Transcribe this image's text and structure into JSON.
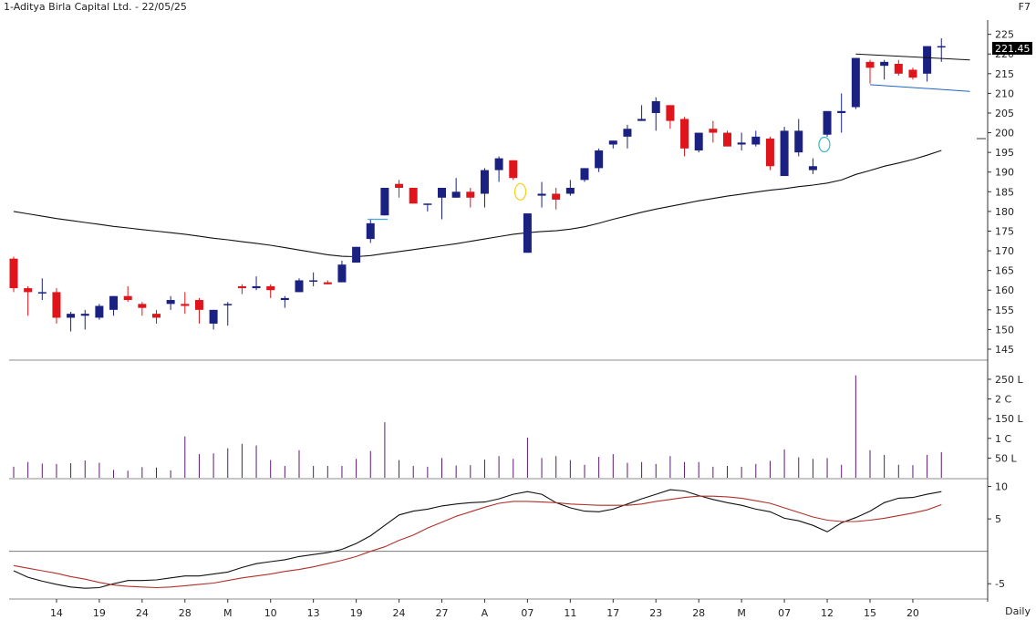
{
  "header": {
    "title": "1-Aditya Birla Capital Ltd. - 22/05/25",
    "code": "F7",
    "period": "Daily"
  },
  "colors": {
    "up": "#1a2181",
    "down": "#e0141b",
    "ma": "#111111",
    "trendline": "#1f63c9",
    "macd": "#111111",
    "signal": "#b0302a",
    "volume": "#5a1a6e",
    "marker_yellow": "#f0d010",
    "marker_cyan": "#38b6c8",
    "last_price_bg": "#000000"
  },
  "chart_data": [
    {
      "type": "candlestick",
      "title": "1-Aditya Birla Capital Ltd. - 22/05/25",
      "ylim": [
        145,
        227
      ],
      "yticks": [
        145,
        150,
        155,
        160,
        165,
        170,
        175,
        180,
        185,
        190,
        195,
        200,
        205,
        210,
        215,
        220,
        225
      ],
      "last_price_label": "221.45",
      "x_tick_labels": [
        {
          "i": 3,
          "label": "14"
        },
        {
          "i": 6,
          "label": "19"
        },
        {
          "i": 9,
          "label": "24"
        },
        {
          "i": 12,
          "label": "28"
        },
        {
          "i": 15,
          "label": "M"
        },
        {
          "i": 18,
          "label": "10"
        },
        {
          "i": 21,
          "label": "13"
        },
        {
          "i": 24,
          "label": "19"
        },
        {
          "i": 27,
          "label": "24"
        },
        {
          "i": 30,
          "label": "27"
        },
        {
          "i": 33,
          "label": "A"
        },
        {
          "i": 36,
          "label": "07"
        },
        {
          "i": 39,
          "label": "11"
        },
        {
          "i": 42,
          "label": "17"
        },
        {
          "i": 45,
          "label": "23"
        },
        {
          "i": 48,
          "label": "28"
        },
        {
          "i": 51,
          "label": "M"
        },
        {
          "i": 54,
          "label": "07"
        },
        {
          "i": 57,
          "label": "12"
        },
        {
          "i": 60,
          "label": "15"
        },
        {
          "i": 63,
          "label": "20"
        }
      ],
      "ohlc": [
        [
          168,
          168.5,
          159.5,
          160.5
        ],
        [
          160.5,
          161,
          153.5,
          159.5
        ],
        [
          159.5,
          163,
          157.5,
          159.5
        ],
        [
          159.5,
          160.5,
          151.5,
          153
        ],
        [
          153,
          154.5,
          149.5,
          154
        ],
        [
          153.5,
          155,
          150,
          154
        ],
        [
          153,
          156.5,
          152.5,
          156
        ],
        [
          155,
          158.5,
          153.5,
          158.5
        ],
        [
          158.5,
          161,
          157,
          157.5
        ],
        [
          156.5,
          157,
          153.5,
          155.5
        ],
        [
          154,
          155,
          151.5,
          153
        ],
        [
          156.5,
          158.5,
          155,
          157.5
        ],
        [
          156.5,
          159.5,
          154,
          156
        ],
        [
          157.5,
          158,
          151.5,
          155
        ],
        [
          151.5,
          155,
          150,
          155
        ],
        [
          156.5,
          157,
          151,
          156.5
        ],
        [
          161,
          161.5,
          159,
          160.5
        ],
        [
          160.5,
          163.5,
          160,
          161
        ],
        [
          161,
          161.5,
          158,
          160
        ],
        [
          157.5,
          158.5,
          155.5,
          158
        ],
        [
          159.5,
          163,
          159.5,
          162.5
        ],
        [
          162.5,
          164.5,
          161,
          162.5
        ],
        [
          162,
          162.5,
          161.5,
          161.5
        ],
        [
          162,
          167.5,
          162,
          166.5
        ],
        [
          167,
          171,
          167,
          171
        ],
        [
          173,
          178,
          172,
          177
        ],
        [
          179,
          186,
          179,
          186
        ],
        [
          187,
          188,
          183.5,
          186
        ],
        [
          186,
          186,
          182,
          182
        ],
        [
          182,
          182,
          180,
          182
        ],
        [
          183.5,
          186,
          178,
          186
        ],
        [
          183.5,
          188.5,
          183.5,
          185
        ],
        [
          185,
          186,
          181,
          183.5
        ],
        [
          184.5,
          191,
          181,
          190.5
        ],
        [
          190.5,
          194,
          187.5,
          193.5
        ],
        [
          193,
          193,
          188,
          188.5
        ],
        [
          169.5,
          179.5,
          169.5,
          179.5
        ],
        [
          184,
          187.5,
          181,
          184.5
        ],
        [
          184.5,
          186,
          180.5,
          183
        ],
        [
          184.5,
          188,
          184,
          186
        ],
        [
          188,
          191,
          187.5,
          191
        ],
        [
          191,
          196,
          190,
          195.5
        ],
        [
          197,
          198,
          196,
          198
        ],
        [
          199,
          202,
          196,
          201
        ],
        [
          203,
          207,
          203,
          203.5
        ],
        [
          205,
          209,
          200.5,
          208
        ],
        [
          207,
          207,
          201,
          203
        ],
        [
          203.5,
          204,
          194,
          196
        ],
        [
          195.5,
          200,
          195,
          200
        ],
        [
          201,
          203,
          197.5,
          200
        ],
        [
          200,
          200.5,
          196.5,
          196.5
        ],
        [
          197,
          200,
          195.5,
          197.5
        ],
        [
          197,
          200.5,
          196.5,
          199
        ],
        [
          198.5,
          199,
          190.5,
          191.5
        ],
        [
          189,
          201.5,
          189,
          200.5
        ],
        [
          195,
          203.5,
          194,
          200.5
        ],
        [
          190.5,
          193.5,
          189.5,
          191.5
        ],
        [
          199.5,
          205.5,
          199,
          205.5
        ],
        [
          205,
          210,
          200,
          205.5
        ],
        [
          206.5,
          219,
          206,
          219
        ],
        [
          218,
          218.5,
          212.5,
          216.5
        ],
        [
          217,
          218.5,
          213.5,
          218
        ],
        [
          217.5,
          218.5,
          214.5,
          215
        ],
        [
          216,
          216.5,
          213.5,
          214
        ],
        [
          215,
          222,
          213,
          222
        ],
        [
          222,
          224,
          218,
          222
        ]
      ],
      "ma_series": [
        180,
        179.4,
        178.8,
        178.2,
        177.7,
        177.2,
        176.7,
        176.2,
        175.8,
        175.4,
        175,
        174.6,
        174.2,
        173.7,
        173.2,
        172.8,
        172.3,
        171.9,
        171.4,
        170.8,
        170.2,
        169.6,
        169,
        168.6,
        168.5,
        168.8,
        169.3,
        169.8,
        170.3,
        170.8,
        171.3,
        171.8,
        172.4,
        173,
        173.6,
        174.2,
        174.6,
        174.9,
        175.1,
        175.5,
        176.1,
        177,
        178,
        178.9,
        179.8,
        180.6,
        181.3,
        182,
        182.7,
        183.3,
        183.9,
        184.4,
        184.9,
        185.4,
        185.8,
        186.3,
        186.7,
        187.2,
        188,
        189.4,
        190.4,
        191.5,
        192.3,
        193.2,
        194.3,
        195.5
      ],
      "resistance_line": {
        "from": {
          "i": 59,
          "y": 220
        },
        "to": {
          "i": 67,
          "y": 218.5
        }
      },
      "support_line": {
        "from": {
          "i": 60,
          "y": 212.2
        },
        "to": {
          "i": 67,
          "y": 210.5
        }
      },
      "small_tick": {
        "i": 36,
        "y": 176
      },
      "marker_yellow": {
        "i": 35.5,
        "y": 185
      },
      "marker_cyan": {
        "i": 56.8,
        "y": 197
      },
      "right_tick": {
        "y": 198.5
      },
      "short_line": {
        "i0": 24.8,
        "i1": 26.2,
        "y": 178
      }
    },
    {
      "type": "bar",
      "title": "",
      "ylim": [
        0,
        280
      ],
      "yticks": [
        {
          "v": 50,
          "label": "50 L"
        },
        {
          "v": 100,
          "label": "1 C"
        },
        {
          "v": 150,
          "label": "150 L"
        },
        {
          "v": 200,
          "label": "2 C"
        },
        {
          "v": 250,
          "label": "250 L"
        }
      ],
      "values": [
        28,
        40,
        36,
        35,
        37,
        44,
        38,
        20,
        18,
        27,
        26,
        19,
        105,
        60,
        62,
        75,
        86,
        82,
        45,
        30,
        70,
        30,
        30,
        30,
        48,
        68,
        141,
        45,
        30,
        28,
        50,
        31,
        32,
        46,
        55,
        48,
        102,
        50,
        55,
        45,
        33,
        53,
        60,
        38,
        40,
        35,
        55,
        40,
        40,
        28,
        30,
        28,
        35,
        43,
        72,
        52,
        48,
        50,
        33,
        260,
        70,
        58,
        33,
        32,
        58,
        65
      ]
    },
    {
      "type": "line",
      "title": "",
      "ylim": [
        -7.5,
        10.5
      ],
      "yticks": [
        {
          "v": 10,
          "label": "10"
        },
        {
          "v": 5,
          "label": "5"
        },
        {
          "v": -5,
          "label": "-5"
        }
      ],
      "zero_line": 0,
      "series": [
        {
          "values": [
            -3,
            -4,
            -4.6,
            -5.1,
            -5.5,
            -5.7,
            -5.6,
            -5,
            -4.5,
            -4.5,
            -4.4,
            -4.1,
            -3.8,
            -3.8,
            -3.5,
            -3.2,
            -2.5,
            -1.9,
            -1.6,
            -1.3,
            -0.8,
            -0.5,
            -0.2,
            0.3,
            1.2,
            2.4,
            4,
            5.6,
            6.2,
            6.5,
            7,
            7.3,
            7.5,
            7.6,
            8.1,
            8.8,
            9.2,
            8.8,
            7.5,
            6.7,
            6.2,
            6.1,
            6.5,
            7.3,
            8.1,
            8.8,
            9.5,
            9.3,
            8.6,
            8,
            7.5,
            7.1,
            6.5,
            6.1,
            5.1,
            4.7,
            4,
            3,
            4.4,
            5.2,
            6.2,
            7.5,
            8.2,
            8.3,
            8.8,
            9.2
          ]
        },
        {
          "values": [
            -2.2,
            -2.6,
            -3,
            -3.4,
            -3.9,
            -4.3,
            -4.8,
            -5.2,
            -5.4,
            -5.5,
            -5.6,
            -5.5,
            -5.3,
            -5.1,
            -4.9,
            -4.5,
            -4.1,
            -3.8,
            -3.5,
            -3.1,
            -2.8,
            -2.4,
            -1.9,
            -1.4,
            -0.8,
            0,
            0.7,
            1.7,
            2.5,
            3.6,
            4.5,
            5.4,
            6.1,
            6.8,
            7.4,
            7.7,
            7.7,
            7.6,
            7.5,
            7.3,
            7.2,
            7.1,
            7.1,
            7.1,
            7.3,
            7.7,
            8,
            8.3,
            8.5,
            8.5,
            8.4,
            8.2,
            7.8,
            7.4,
            6.7,
            6,
            5.3,
            4.8,
            4.6,
            4.6,
            4.8,
            5.1,
            5.5,
            5.9,
            6.4,
            7.2
          ]
        }
      ]
    }
  ]
}
